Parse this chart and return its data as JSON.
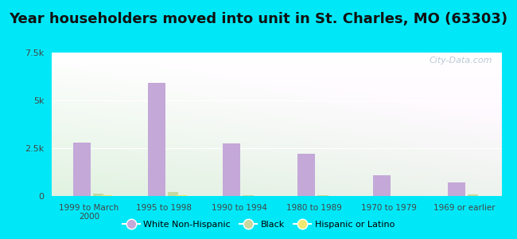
{
  "title": "Year householders moved into unit in St. Charles, MO (63303)",
  "categories": [
    "1999 to March\n2000",
    "1995 to 1998",
    "1990 to 1994",
    "1980 to 1989",
    "1970 to 1979",
    "1969 or earlier"
  ],
  "white_non_hispanic": [
    2800,
    5900,
    2750,
    2200,
    1100,
    700
  ],
  "black": [
    120,
    200,
    60,
    40,
    0,
    80
  ],
  "hispanic_or_latino": [
    40,
    50,
    20,
    20,
    0,
    0
  ],
  "bar_colors": {
    "white": "#c4a8d8",
    "black": "#c8d8a0",
    "hispanic": "#f0e870"
  },
  "background_outer": "#00e8f8",
  "ylim": [
    0,
    7500
  ],
  "yticks": [
    0,
    2500,
    5000,
    7500
  ],
  "ytick_labels": [
    "0",
    "2.5k",
    "5k",
    "7.5k"
  ],
  "title_fontsize": 13,
  "watermark": "City-Data.com",
  "legend_labels": [
    "White Non-Hispanic",
    "Black",
    "Hispanic or Latino"
  ]
}
